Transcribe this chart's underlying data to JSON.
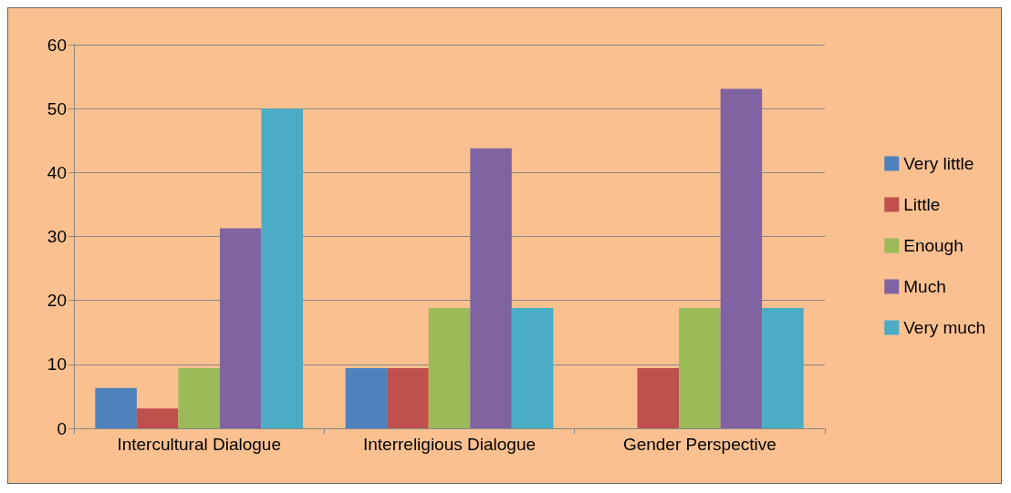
{
  "chart_data": {
    "type": "bar",
    "categories": [
      "Intercultural Dialogue",
      "Interreligious Dialogue",
      "Gender Perspective"
    ],
    "series": [
      {
        "name": "Very little",
        "color": "#4f81bd",
        "values": [
          6.3,
          9.4,
          0
        ]
      },
      {
        "name": "Little",
        "color": "#c0504d",
        "values": [
          3.1,
          9.4,
          9.4
        ]
      },
      {
        "name": "Enough",
        "color": "#9bbb59",
        "values": [
          9.4,
          18.8,
          18.8
        ]
      },
      {
        "name": "Much",
        "color": "#8064a2",
        "values": [
          31.3,
          43.8,
          53.1
        ]
      },
      {
        "name": "Very much",
        "color": "#4bacc6",
        "values": [
          50,
          18.8,
          18.8
        ]
      }
    ],
    "ylim": [
      0,
      60
    ],
    "yticks": [
      0,
      10,
      20,
      30,
      40,
      50,
      60
    ],
    "grid": "y",
    "legend": "right"
  }
}
